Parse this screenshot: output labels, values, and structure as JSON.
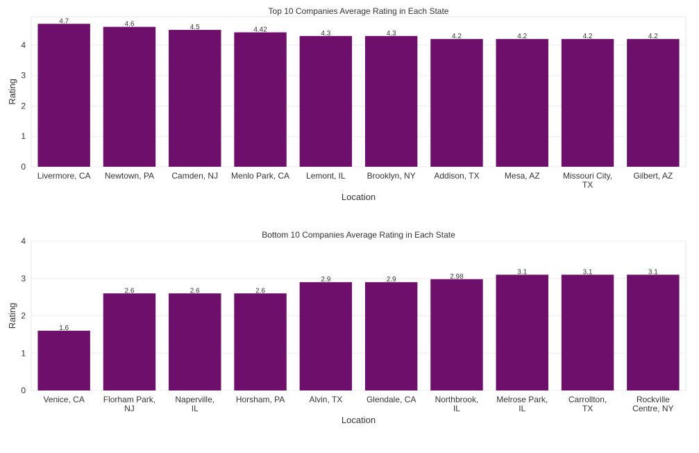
{
  "chart_data": [
    {
      "type": "bar",
      "title": "Top 10 Companies Average Rating in Each State",
      "xlabel": "Location",
      "ylabel": "Rating",
      "categories": [
        "Livermore, CA",
        "Newtown, PA",
        "Camden, NJ",
        "Menlo Park, CA",
        "Lemont, IL",
        "Brooklyn, NY",
        "Addison, TX",
        "Mesa, AZ",
        "Missouri City, TX",
        "Gilbert, AZ"
      ],
      "values": [
        4.7,
        4.6,
        4.5,
        4.42,
        4.3,
        4.3,
        4.2,
        4.2,
        4.2,
        4.2
      ],
      "data_labels": [
        "4.7",
        "4.6",
        "4.5",
        "4.42",
        "4.3",
        "4.3",
        "4.2",
        "4.2",
        "4.2",
        "4.2"
      ],
      "ylim": [
        0,
        4.935
      ],
      "yticks": [
        0,
        1,
        2,
        3,
        4
      ],
      "grid": true,
      "bar_color": "#6d0f6b"
    },
    {
      "type": "bar",
      "title": "Bottom 10 Companies Average Rating in Each State",
      "xlabel": "Location",
      "ylabel": "Rating",
      "categories": [
        "Venice, CA",
        "Florham Park, NJ",
        "Naperville, IL",
        "Horsham, PA",
        "Alvin, TX",
        "Glendale, CA",
        "Northbrook, IL",
        "Melrose Park, IL",
        "Carrollton, TX",
        "Rockville Centre, NY"
      ],
      "values": [
        1.6,
        2.6,
        2.6,
        2.6,
        2.9,
        2.9,
        2.98,
        3.1,
        3.1,
        3.1
      ],
      "data_labels": [
        "1.6",
        "2.6",
        "2.6",
        "2.6",
        "2.9",
        "2.9",
        "2.98",
        "3.1",
        "3.1",
        "3.1"
      ],
      "ylim": [
        0,
        4
      ],
      "yticks": [
        0,
        1,
        2,
        3,
        4
      ],
      "grid": true,
      "bar_color": "#6d0f6b"
    }
  ]
}
